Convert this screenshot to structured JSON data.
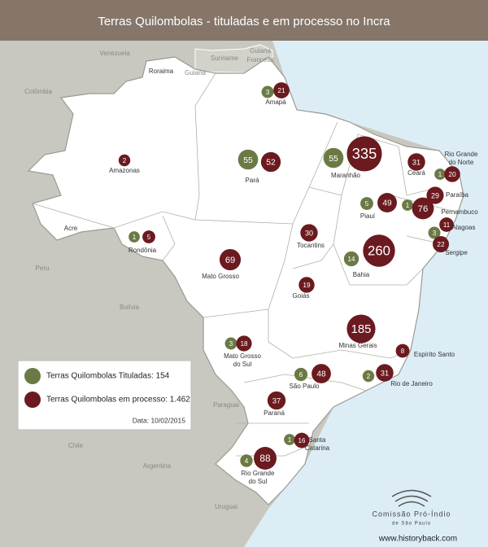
{
  "header": {
    "title": "Terras Quilombolas - tituladas e em processo no Incra"
  },
  "countries": [
    {
      "name": [
        "Venezuela"
      ]
    },
    {
      "name": [
        "Guiana"
      ]
    },
    {
      "name": [
        "Suriname"
      ]
    },
    {
      "name": [
        "Guiana",
        "Francesa"
      ]
    },
    {
      "name": [
        "Colômbia"
      ]
    },
    {
      "name": [
        "Peru"
      ]
    },
    {
      "name": [
        "Bolívia"
      ]
    },
    {
      "name": [
        "Paraguai"
      ]
    },
    {
      "name": [
        "Chile"
      ]
    },
    {
      "name": [
        "Argentina"
      ]
    },
    {
      "name": [
        "Uruguai"
      ]
    }
  ],
  "states": [
    {
      "name": [
        "Roraima"
      ]
    },
    {
      "name": [
        "Amapá"
      ],
      "titled": 3,
      "in_process": 21
    },
    {
      "name": [
        "Amazonas"
      ],
      "in_process": 2
    },
    {
      "name": [
        "Pará"
      ],
      "titled": 55,
      "in_process": 52
    },
    {
      "name": [
        "Maranhão"
      ],
      "titled": 55,
      "in_process": 335
    },
    {
      "name": [
        "Ceará"
      ],
      "in_process": 31
    },
    {
      "name": [
        "Rio Grande",
        "do Norte"
      ],
      "titled": 1,
      "in_process": 20
    },
    {
      "name": [
        "Paraíba"
      ],
      "in_process": 29
    },
    {
      "name": [
        "Pernambuco"
      ],
      "titled": 1,
      "in_process": 76
    },
    {
      "name": [
        "Piauí"
      ],
      "titled": 5,
      "in_process": 49
    },
    {
      "name": [
        "Alagoas"
      ],
      "in_process": 11
    },
    {
      "name": [
        "Sergipe"
      ],
      "titled": 3,
      "in_process": 22
    },
    {
      "name": [
        "Acre"
      ]
    },
    {
      "name": [
        "Rondônia"
      ],
      "titled": 1,
      "in_process": 5
    },
    {
      "name": [
        "Tocantins"
      ],
      "in_process": 30
    },
    {
      "name": [
        "Bahia"
      ],
      "titled": 14,
      "in_process": 260
    },
    {
      "name": [
        "Mato Grosso"
      ],
      "in_process": 69
    },
    {
      "name": [
        "Goiás"
      ],
      "in_process": 19
    },
    {
      "name": [
        "Minas Gerais"
      ],
      "in_process": 185
    },
    {
      "name": [
        "Espírito Santo"
      ],
      "in_process": 8
    },
    {
      "name": [
        "Mato Grosso",
        "do Sul"
      ],
      "titled": 3,
      "in_process": 18
    },
    {
      "name": [
        "São Paulo"
      ],
      "titled": 6,
      "in_process": 48
    },
    {
      "name": [
        "Rio de Janeiro"
      ],
      "titled": 2,
      "in_process": 31
    },
    {
      "name": [
        "Paraná"
      ],
      "in_process": 37
    },
    {
      "name": [
        "Santa",
        "Catarina"
      ],
      "titled": 1,
      "in_process": 16
    },
    {
      "name": [
        "Rio Grande",
        "do Sul"
      ],
      "titled": 4,
      "in_process": 88
    }
  ],
  "legend": {
    "items": [
      {
        "label": "Terras Quilombolas Tituladas: 154",
        "color": "#6b7a45"
      },
      {
        "label": "Terras Quilombolas em processo: 1.462",
        "color": "#6b1a1f"
      }
    ],
    "date": "Data: 10/02/2015"
  },
  "footer": {
    "logo": [
      "Comissão Pró-Índio",
      "de São Paulo"
    ],
    "watermark": "www.historyback.com"
  }
}
